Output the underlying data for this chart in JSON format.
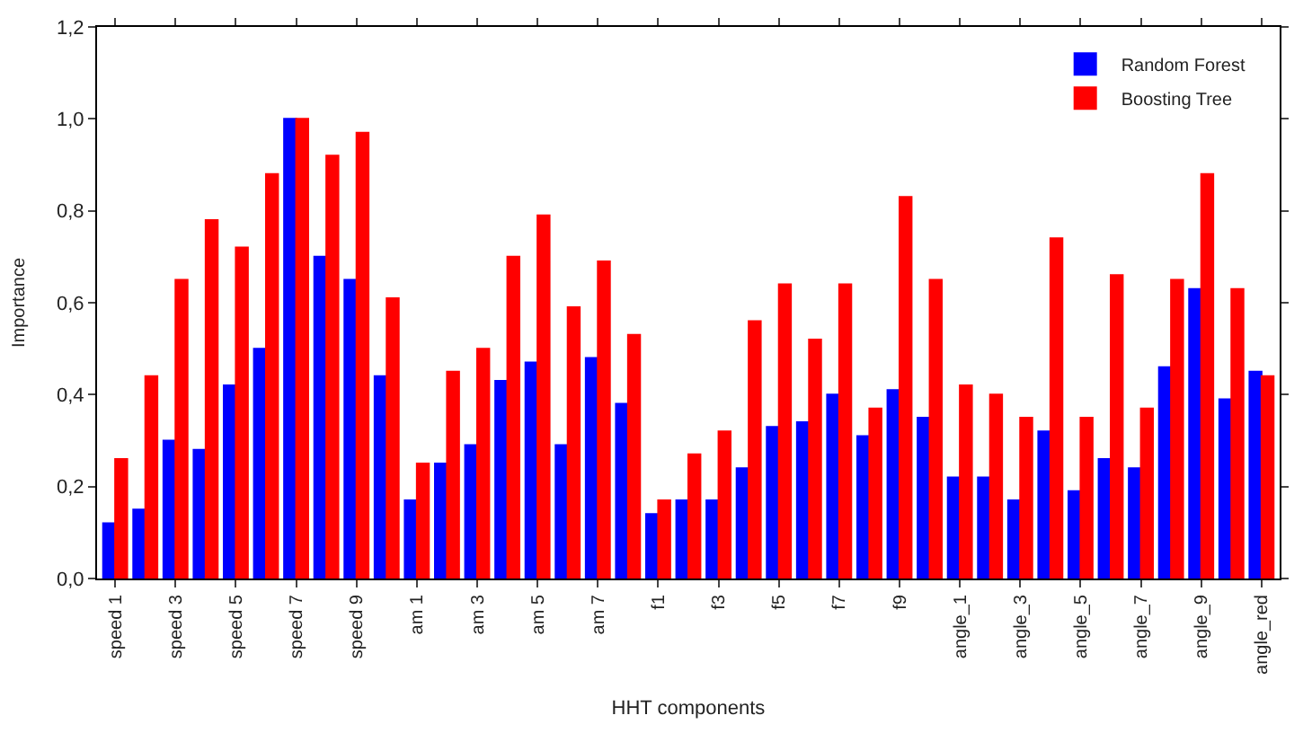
{
  "chart_data": {
    "type": "bar",
    "xlabel": "HHT components",
    "ylabel": "Importance",
    "categories": [
      "speed 1",
      null,
      "speed 3",
      null,
      "speed 5",
      null,
      "speed 7",
      null,
      "speed 9",
      null,
      "am 1",
      null,
      "am 3",
      null,
      "am 5",
      null,
      "am 7",
      null,
      "f1",
      null,
      "f3",
      null,
      "f5",
      null,
      "f7",
      null,
      "f9",
      null,
      "angle_1",
      null,
      "angle_3",
      null,
      "angle_5",
      null,
      "angle_7",
      null,
      "angle_9",
      null,
      "angle_red"
    ],
    "series": [
      {
        "name": "Random Forest",
        "color": "#0000ff",
        "values": [
          0.12,
          0.15,
          0.3,
          0.28,
          0.42,
          0.5,
          1.0,
          0.7,
          0.65,
          0.44,
          0.17,
          0.25,
          0.29,
          0.43,
          0.47,
          0.29,
          0.48,
          0.38,
          0.14,
          0.17,
          0.17,
          0.24,
          0.33,
          0.34,
          0.4,
          0.31,
          0.41,
          0.35,
          0.22,
          0.22,
          0.17,
          0.32,
          0.19,
          0.26,
          0.24,
          0.46,
          0.63,
          0.39,
          0.45
        ]
      },
      {
        "name": "Boosting Tree",
        "color": "#ff0000",
        "values": [
          0.26,
          0.44,
          0.65,
          0.78,
          0.72,
          0.88,
          1.0,
          0.92,
          0.97,
          0.61,
          0.25,
          0.45,
          0.5,
          0.7,
          0.79,
          0.59,
          0.69,
          0.53,
          0.17,
          0.27,
          0.32,
          0.56,
          0.64,
          0.52,
          0.64,
          0.37,
          0.83,
          0.65,
          0.42,
          0.4,
          0.35,
          0.74,
          0.35,
          0.66,
          0.37,
          0.65,
          0.88,
          0.63,
          0.44
        ]
      }
    ],
    "ylim": [
      0,
      1.2
    ],
    "yticks": [
      {
        "value": 0,
        "label": "0,0"
      },
      {
        "value": 0.2,
        "label": "0,2"
      },
      {
        "value": 0.4,
        "label": "0,4"
      },
      {
        "value": 0.6,
        "label": "0,6"
      },
      {
        "value": 0.8,
        "label": "0,8"
      },
      {
        "value": 1.0,
        "label": "1,0"
      },
      {
        "value": 1.2,
        "label": "1,2"
      }
    ],
    "legend": "top right"
  }
}
